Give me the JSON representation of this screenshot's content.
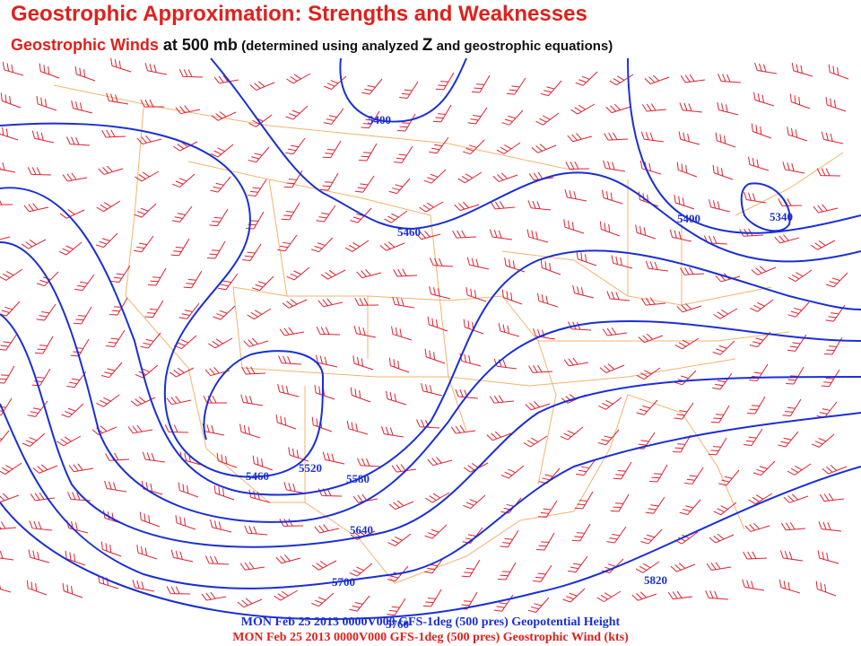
{
  "header": {
    "title": "Geostrophic Approximation: Strengths and Weaknesses",
    "subtitle": [
      "Geostrophic Winds",
      " at 500 mb",
      " (determined using analyzed ",
      "Z",
      " and geostrophic equations)"
    ]
  },
  "map": {
    "contour_labels": [
      5400,
      5460,
      5400,
      5340,
      5460,
      5520,
      5580,
      5640,
      5700,
      5820,
      5760
    ],
    "footer": [
      "MON Feb 25 2013 0000V000 GFS-1deg (500 pres) Geopotential Height",
      "MON Feb 25 2013 0000V000 GFS-1deg (500 pres) Geostrophic Wind (kts)"
    ]
  }
}
